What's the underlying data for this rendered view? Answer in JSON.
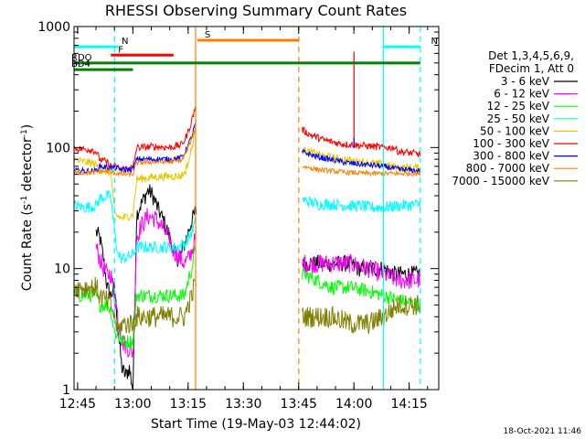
{
  "chart_data": {
    "type": "line",
    "title": "RHESSI Observing Summary Count Rates",
    "xlabel": "Start Time (19-May-03 12:44:02)",
    "ylabel_prefix": "Count Rate (s",
    "ylabel_sup": "-1",
    "ylabel_mid": " detector",
    "ylabel_end": ")",
    "x_unit": "minutes after 12:44:02",
    "xlim": [
      0,
      99
    ],
    "ylim": [
      1,
      1000
    ],
    "y_scale": "log",
    "grid": false,
    "x_ticks": [
      {
        "t": 0.97,
        "label": "12:45"
      },
      {
        "t": 15.97,
        "label": "13:00"
      },
      {
        "t": 30.97,
        "label": "13:15"
      },
      {
        "t": 45.97,
        "label": "13:30"
      },
      {
        "t": 60.97,
        "label": "13:45"
      },
      {
        "t": 75.97,
        "label": "14:00"
      },
      {
        "t": 90.97,
        "label": "14:15"
      }
    ],
    "y_ticks": [
      {
        "v": 1,
        "label": "1"
      },
      {
        "v": 10,
        "label": "10"
      },
      {
        "v": 100,
        "label": "100"
      },
      {
        "v": 1000,
        "label": "1000"
      }
    ],
    "legend_header": [
      "Det 1,3,4,5,6,9,",
      "FDecim 1, Att 0"
    ],
    "legend_position": "right",
    "footer_date": "18-Oct-2021 11:46",
    "flags": [
      {
        "label": "N",
        "t0": 0,
        "t1": 12,
        "v": 680,
        "color": "#00ffff"
      },
      {
        "label": "N",
        "t0": 84,
        "t1": 94,
        "v": 680,
        "color": "#00ffff"
      },
      {
        "label": "F",
        "t0": 10,
        "t1": 27,
        "v": 580,
        "color": "#ff0000"
      },
      {
        "label": "S",
        "t0": 33.5,
        "t1": 61,
        "v": 770,
        "color": "#ff8000"
      },
      {
        "label": "RDO",
        "t0": 0,
        "t1": 94,
        "v": 500,
        "color": "#008000"
      },
      {
        "label": "BD4",
        "t0": 0,
        "t1": 16,
        "v": 440,
        "color": "#008000"
      }
    ],
    "vlines": [
      {
        "t": 11,
        "color": "#00ffff",
        "dash": true
      },
      {
        "t": 33,
        "color": "#ff8000",
        "dash": false
      },
      {
        "t": 61,
        "color": "#ff8000",
        "dash": true
      },
      {
        "t": 84,
        "color": "#00ffff",
        "dash": false
      },
      {
        "t": 94,
        "color": "#00ffff",
        "dash": true
      }
    ],
    "series": [
      {
        "name": "3 - 6 keV",
        "color": "#000000",
        "noise": 0.07,
        "points": [
          [
            6,
            20
          ],
          [
            7,
            18
          ],
          [
            8,
            12
          ],
          [
            9,
            7
          ],
          [
            10,
            6
          ],
          [
            11,
            7
          ],
          [
            12,
            3
          ],
          [
            13,
            1.5
          ],
          [
            14,
            1.3
          ],
          [
            15,
            1.5
          ],
          [
            16,
            1
          ],
          [
            17,
            28
          ],
          [
            18,
            33
          ],
          [
            19,
            38
          ],
          [
            20,
            44
          ],
          [
            21,
            42
          ],
          [
            22,
            36
          ],
          [
            23,
            30
          ],
          [
            24,
            26
          ],
          [
            25,
            22
          ],
          [
            26,
            18
          ],
          [
            27,
            14
          ],
          [
            28,
            12
          ],
          [
            29,
            13
          ],
          [
            30,
            16
          ],
          [
            31,
            20
          ],
          [
            32,
            25
          ],
          [
            33,
            30
          ],
          [
            62,
            11
          ],
          [
            65,
            11
          ],
          [
            70,
            11
          ],
          [
            75,
            11
          ],
          [
            77,
            10
          ],
          [
            80,
            10
          ],
          [
            84,
            10
          ],
          [
            87,
            9
          ],
          [
            90,
            9
          ],
          [
            94,
            9
          ]
        ]
      },
      {
        "name": "6 - 12 keV",
        "color": "#ff00ff",
        "noise": 0.08,
        "points": [
          [
            6,
            15
          ],
          [
            7,
            12
          ],
          [
            8,
            10
          ],
          [
            9,
            9
          ],
          [
            10,
            9
          ],
          [
            11,
            6
          ],
          [
            13,
            2.5
          ],
          [
            16,
            2
          ],
          [
            17,
            18
          ],
          [
            18,
            22
          ],
          [
            20,
            27
          ],
          [
            22,
            26
          ],
          [
            24,
            22
          ],
          [
            26,
            17
          ],
          [
            27,
            14
          ],
          [
            28,
            13
          ],
          [
            30,
            11
          ],
          [
            31,
            12
          ],
          [
            32,
            14
          ],
          [
            33,
            18
          ],
          [
            62,
            11
          ],
          [
            66,
            11
          ],
          [
            70,
            11
          ],
          [
            75,
            11
          ],
          [
            80,
            10
          ],
          [
            84,
            9
          ],
          [
            88,
            8
          ],
          [
            94,
            8
          ]
        ]
      },
      {
        "name": "12 - 25 keV",
        "color": "#00ff00",
        "noise": 0.06,
        "points": [
          [
            0,
            6
          ],
          [
            4,
            6
          ],
          [
            6,
            6
          ],
          [
            7,
            5
          ],
          [
            9,
            5
          ],
          [
            10,
            4.5
          ],
          [
            11,
            3
          ],
          [
            13,
            2.5
          ],
          [
            16,
            2.5
          ],
          [
            17,
            6
          ],
          [
            22,
            6
          ],
          [
            26,
            6
          ],
          [
            30,
            6
          ],
          [
            31,
            8
          ],
          [
            32,
            10
          ],
          [
            33,
            15
          ],
          [
            62,
            9
          ],
          [
            66,
            8
          ],
          [
            70,
            7
          ],
          [
            75,
            7
          ],
          [
            80,
            6.5
          ],
          [
            84,
            6
          ],
          [
            88,
            5.5
          ],
          [
            94,
            5
          ]
        ]
      },
      {
        "name": "25 - 50 keV",
        "color": "#00ffff",
        "noise": 0.05,
        "points": [
          [
            0,
            33
          ],
          [
            3,
            32
          ],
          [
            6,
            33
          ],
          [
            7,
            38
          ],
          [
            9,
            40
          ],
          [
            10,
            38
          ],
          [
            11,
            20
          ],
          [
            12,
            13
          ],
          [
            13,
            12
          ],
          [
            16,
            13
          ],
          [
            17,
            15
          ],
          [
            20,
            15
          ],
          [
            24,
            15
          ],
          [
            28,
            15
          ],
          [
            30,
            16
          ],
          [
            31,
            18
          ],
          [
            32,
            20
          ],
          [
            33,
            25
          ],
          [
            62,
            37
          ],
          [
            66,
            34
          ],
          [
            70,
            34
          ],
          [
            75,
            33
          ],
          [
            78,
            33
          ],
          [
            80,
            32
          ],
          [
            84,
            32
          ],
          [
            88,
            33
          ],
          [
            94,
            34
          ]
        ]
      },
      {
        "name": "50 - 100 keV",
        "color": "#e6c800",
        "noise": 0.035,
        "points": [
          [
            0,
            78
          ],
          [
            3,
            76
          ],
          [
            5,
            74
          ],
          [
            6,
            72
          ],
          [
            7,
            65
          ],
          [
            9,
            63
          ],
          [
            10,
            62
          ],
          [
            11,
            28
          ],
          [
            12,
            27
          ],
          [
            13,
            26
          ],
          [
            16,
            28
          ],
          [
            17,
            55
          ],
          [
            22,
            57
          ],
          [
            26,
            58
          ],
          [
            29,
            58
          ],
          [
            30,
            62
          ],
          [
            31,
            75
          ],
          [
            32,
            100
          ],
          [
            33,
            140
          ],
          [
            62,
            95
          ],
          [
            66,
            88
          ],
          [
            70,
            82
          ],
          [
            75,
            78
          ],
          [
            80,
            75
          ],
          [
            84,
            72
          ],
          [
            88,
            68
          ],
          [
            94,
            68
          ]
        ]
      },
      {
        "name": "100 - 300 keV",
        "color": "#ff0000",
        "noise": 0.03,
        "points": [
          [
            0,
            98
          ],
          [
            3,
            97
          ],
          [
            5,
            96
          ],
          [
            6,
            92
          ],
          [
            7,
            80
          ],
          [
            9,
            75
          ],
          [
            10,
            70
          ],
          [
            11,
            70
          ],
          [
            12,
            68
          ],
          [
            13,
            66
          ],
          [
            16,
            68
          ],
          [
            17,
            100
          ],
          [
            22,
            102
          ],
          [
            26,
            100
          ],
          [
            29,
            105
          ],
          [
            30,
            115
          ],
          [
            31,
            135
          ],
          [
            32,
            170
          ],
          [
            33,
            220
          ],
          [
            62,
            140
          ],
          [
            64,
            128
          ],
          [
            68,
            115
          ],
          [
            72,
            108
          ],
          [
            76,
            105
          ],
          [
            80,
            103
          ],
          [
            84,
            100
          ],
          [
            87,
            100
          ],
          [
            88,
            93
          ],
          [
            94,
            88
          ]
        ]
      },
      {
        "name": "300 - 800 keV",
        "color": "#0000ff",
        "noise": 0.025,
        "points": [
          [
            0,
            64
          ],
          [
            5,
            64
          ],
          [
            6,
            64
          ],
          [
            7,
            70
          ],
          [
            10,
            68
          ],
          [
            11,
            68
          ],
          [
            13,
            66
          ],
          [
            16,
            66
          ],
          [
            17,
            80
          ],
          [
            22,
            80
          ],
          [
            26,
            80
          ],
          [
            29,
            82
          ],
          [
            30,
            90
          ],
          [
            31,
            105
          ],
          [
            32,
            125
          ],
          [
            33,
            160
          ],
          [
            62,
            92
          ],
          [
            66,
            84
          ],
          [
            70,
            79
          ],
          [
            75,
            74
          ],
          [
            80,
            72
          ],
          [
            84,
            70
          ],
          [
            88,
            66
          ],
          [
            94,
            64
          ]
        ]
      },
      {
        "name": "800 - 7000 keV",
        "color": "#ff8000",
        "noise": 0.02,
        "points": [
          [
            0,
            62
          ],
          [
            5,
            62
          ],
          [
            6,
            62
          ],
          [
            7,
            64
          ],
          [
            10,
            63
          ],
          [
            11,
            62
          ],
          [
            13,
            60
          ],
          [
            16,
            60
          ],
          [
            17,
            75
          ],
          [
            22,
            76
          ],
          [
            26,
            76
          ],
          [
            29,
            78
          ],
          [
            30,
            85
          ],
          [
            31,
            100
          ],
          [
            32,
            120
          ],
          [
            33,
            150
          ],
          [
            62,
            70
          ],
          [
            66,
            66
          ],
          [
            70,
            64
          ],
          [
            75,
            62
          ],
          [
            80,
            61
          ],
          [
            84,
            61
          ],
          [
            88,
            61
          ],
          [
            94,
            61
          ]
        ]
      },
      {
        "name": "7000 - 15000 keV",
        "color": "#808000",
        "noise": 0.09,
        "points": [
          [
            0,
            7
          ],
          [
            4,
            7
          ],
          [
            6,
            7
          ],
          [
            7,
            6
          ],
          [
            10,
            5
          ],
          [
            11,
            4
          ],
          [
            12,
            3
          ],
          [
            13,
            3.5
          ],
          [
            16,
            3.5
          ],
          [
            17,
            4
          ],
          [
            22,
            4
          ],
          [
            26,
            4
          ],
          [
            30,
            4
          ],
          [
            31,
            5
          ],
          [
            32,
            6
          ],
          [
            33,
            8
          ],
          [
            62,
            4
          ],
          [
            66,
            4
          ],
          [
            70,
            4
          ],
          [
            75,
            3.5
          ],
          [
            80,
            3.5
          ],
          [
            84,
            4
          ],
          [
            88,
            5
          ],
          [
            94,
            5
          ]
        ]
      }
    ],
    "spikes": [
      {
        "t": 76,
        "v": 620,
        "color": "#ff0000"
      },
      {
        "t": 76,
        "v": 120,
        "color": "#0000ff"
      }
    ]
  }
}
